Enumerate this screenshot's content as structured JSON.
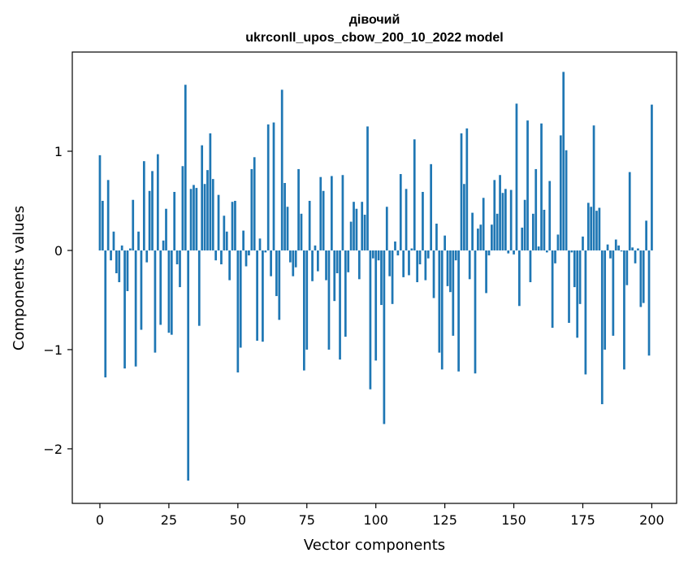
{
  "chart_data": {
    "type": "bar",
    "title": "дівочий",
    "subtitle": "ukrconll_upos_cbow_200_10_2022 model",
    "xlabel": "Vector components",
    "ylabel": "Components values",
    "xlim": [
      -10,
      209
    ],
    "ylim": [
      -2.55,
      2.0
    ],
    "xticks": [
      0,
      25,
      50,
      75,
      100,
      125,
      150,
      175,
      200
    ],
    "yticks": [
      1,
      0,
      -1,
      -2
    ],
    "ytick_labels": [
      "1",
      "0",
      "−1",
      "−2"
    ],
    "grid": false,
    "color": "#1f77b4",
    "values": [
      0.96,
      0.5,
      -1.28,
      0.71,
      -0.1,
      0.19,
      -0.23,
      -0.32,
      0.05,
      -1.19,
      -0.41,
      0.02,
      0.51,
      -1.17,
      0.19,
      -0.8,
      0.9,
      -0.12,
      0.6,
      0.8,
      -1.03,
      0.97,
      -0.75,
      0.1,
      0.42,
      -0.83,
      -0.85,
      0.59,
      -0.14,
      -0.37,
      0.85,
      1.67,
      -2.32,
      0.62,
      0.66,
      0.63,
      -0.76,
      1.06,
      0.67,
      0.81,
      1.18,
      0.72,
      -0.1,
      0.56,
      -0.14,
      0.35,
      0.19,
      -0.3,
      0.49,
      0.5,
      -1.23,
      -0.98,
      0.2,
      -0.16,
      -0.05,
      0.82,
      0.94,
      -0.91,
      0.12,
      -0.92,
      -0.02,
      1.27,
      -0.26,
      1.29,
      -0.46,
      -0.7,
      1.62,
      0.68,
      0.44,
      -0.12,
      -0.26,
      -0.17,
      0.82,
      0.37,
      -1.21,
      -1.0,
      0.5,
      -0.31,
      0.05,
      -0.21,
      0.74,
      0.6,
      -0.3,
      -1.0,
      0.75,
      -0.51,
      -0.23,
      -1.1,
      0.76,
      -0.87,
      -0.22,
      0.29,
      0.49,
      0.42,
      -0.29,
      0.49,
      0.36,
      1.25,
      -1.4,
      -0.08,
      -1.11,
      -0.1,
      -0.55,
      -1.75,
      0.44,
      -0.26,
      -0.54,
      0.09,
      -0.05,
      0.77,
      -0.27,
      0.62,
      -0.25,
      0.02,
      1.12,
      -0.32,
      -0.14,
      0.59,
      -0.3,
      -0.08,
      0.87,
      -0.48,
      0.27,
      -1.03,
      -1.2,
      0.15,
      -0.36,
      -0.42,
      -0.86,
      -0.1,
      -1.22,
      1.18,
      0.67,
      1.23,
      -0.29,
      0.38,
      -1.24,
      0.22,
      0.26,
      0.53,
      -0.43,
      -0.05,
      0.26,
      0.71,
      0.37,
      0.76,
      0.58,
      0.62,
      -0.03,
      0.61,
      -0.04,
      1.48,
      -0.56,
      0.23,
      0.51,
      1.31,
      -0.32,
      0.37,
      0.82,
      0.04,
      1.28,
      0.41,
      -0.02,
      0.7,
      -0.78,
      -0.13,
      0.16,
      1.16,
      1.8,
      1.01,
      -0.73,
      -0.02,
      -0.37,
      -0.88,
      -0.54,
      0.14,
      -1.25,
      0.48,
      0.44,
      1.26,
      0.4,
      0.43,
      -1.55,
      -1.0,
      0.06,
      -0.08,
      -0.86,
      0.11,
      0.05,
      -0.01,
      -1.2,
      -0.35,
      0.79,
      0.03,
      -0.13,
      0.02,
      -0.57,
      -0.53,
      0.3,
      -1.06,
      1.47
    ]
  }
}
